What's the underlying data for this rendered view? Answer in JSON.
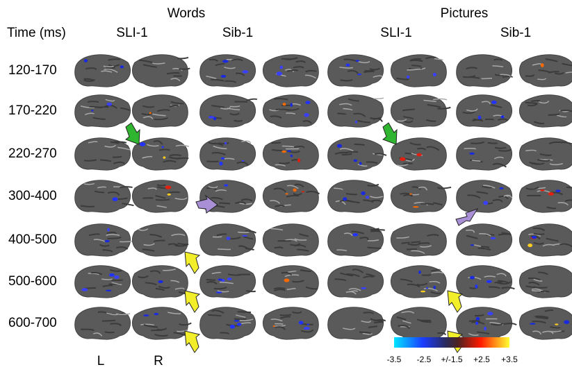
{
  "header": {
    "groups": [
      "Words",
      "Pictures"
    ],
    "time_label": "Time (ms)",
    "columns": [
      "SLI-1",
      "Sib-1",
      "SLI-1",
      "Sib-1"
    ]
  },
  "rows": [
    "120-170",
    "170-220",
    "220-270",
    "300-400",
    "400-500",
    "500-600",
    "600-700"
  ],
  "hemispheres": [
    "L",
    "R"
  ],
  "colorbar": {
    "labels": [
      "-3.5",
      "-2.5",
      "+/-1.5",
      "+2.5",
      "+3.5"
    ]
  }
}
